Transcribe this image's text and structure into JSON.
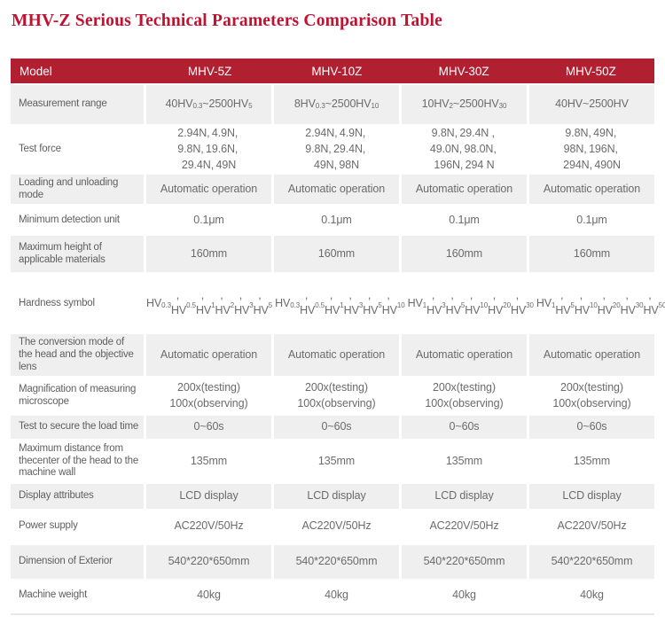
{
  "page": {
    "title": "MHV-Z Serious Technical Parameters Comparison Table"
  },
  "colors": {
    "title_text": "#c01130",
    "header_bg": "#b12031",
    "header_text": "#ffffff",
    "alt_row_bg": "#efefef",
    "body_text": "#6b6b6b"
  },
  "table": {
    "columns": [
      "Model",
      "MHV-5Z",
      "MHV-10Z",
      "MHV-30Z",
      "MHV-50Z"
    ],
    "rows": [
      {
        "label": "Measurement range",
        "values": [
          "40HV_{0.3}~2500HV_{5}",
          "8HV_{0.3}~2500HV_{10}",
          "10HV_{2}~2500HV_{30}",
          "40HV~2500HV"
        ]
      },
      {
        "label": "Test force",
        "values": [
          [
            "2.94N、4.9N、",
            "9.8N、19.6N、",
            "29.4N、49N"
          ],
          [
            "2.94N、4.9N、",
            "9.8N、29.4N、",
            "49N、98N"
          ],
          [
            "9.8N、29.4N 、",
            "49.0N、98.0N、",
            "196N、294 N"
          ],
          [
            "9.8N、49N、",
            "98N、196N、",
            "294N、490N"
          ]
        ]
      },
      {
        "label": "Loading and unloading mode",
        "values": [
          "Automatic operation",
          "Automatic operation",
          "Automatic operation",
          "Automatic operation"
        ]
      },
      {
        "label": "Minimum detection unit",
        "values": [
          "0.1μm",
          "0.1μm",
          "0.1μm",
          "0.1μm"
        ]
      },
      {
        "label": "Maximum height of applicable materials",
        "values": [
          "160mm",
          "160mm",
          "160mm",
          "160mm"
        ]
      },
      {
        "label": "Hardness symbol",
        "values": [
          [
            "HV_{0.3}、HV_{0.5}、",
            "HV_{1}、HV_{2}、",
            "HV_{3}、HV_{5}"
          ],
          [
            "HV_{0.3}、HV_{0.5}、",
            "HV_{1}、HV_{3}、",
            "HV_{5}、HV_{10}"
          ],
          [
            "HV_{1}、HV_{3}、",
            "HV_{5}、HV_{10}、",
            "HV_{20}、HV_{30}"
          ],
          [
            "HV_{1}、HV_{5}、",
            "HV_{10}、HV_{20}、",
            "HV_{30}、HV_{50}"
          ]
        ]
      },
      {
        "label": "The conversion mode of the head and the objective lens",
        "values": [
          "Automatic operation",
          "Automatic operation",
          "Automatic operation",
          "Automatic operation"
        ]
      },
      {
        "label": "Magnification of measuring microscope",
        "values": [
          [
            "200x(testing)",
            "100x(observing)"
          ],
          [
            "200x(testing)",
            "100x(observing)"
          ],
          [
            "200x(testing)",
            "100x(observing)"
          ],
          [
            "200x(testing)",
            "100x(observing)"
          ]
        ]
      },
      {
        "label": "Test to secure the load time",
        "values": [
          "0~60s",
          "0~60s",
          "0~60s",
          "0~60s"
        ]
      },
      {
        "label": "Maximum distance from thecenter of the head to the machine wall",
        "values": [
          "135mm",
          "135mm",
          "135mm",
          "135mm"
        ]
      },
      {
        "label": "Display attributes",
        "values": [
          "LCD display",
          "LCD display",
          "LCD display",
          "LCD display"
        ]
      },
      {
        "label": "Power supply",
        "values": [
          "AC220V/50Hz",
          "AC220V/50Hz",
          "AC220V/50Hz",
          "AC220V/50Hz"
        ]
      },
      {
        "label": "Dimension of Exterior",
        "values": [
          "540*220*650mm",
          "540*220*650mm",
          "540*220*650mm",
          "540*220*650mm"
        ]
      },
      {
        "label": "Machine weight",
        "values": [
          "40kg",
          "40kg",
          "40kg",
          "40kg"
        ]
      }
    ]
  }
}
